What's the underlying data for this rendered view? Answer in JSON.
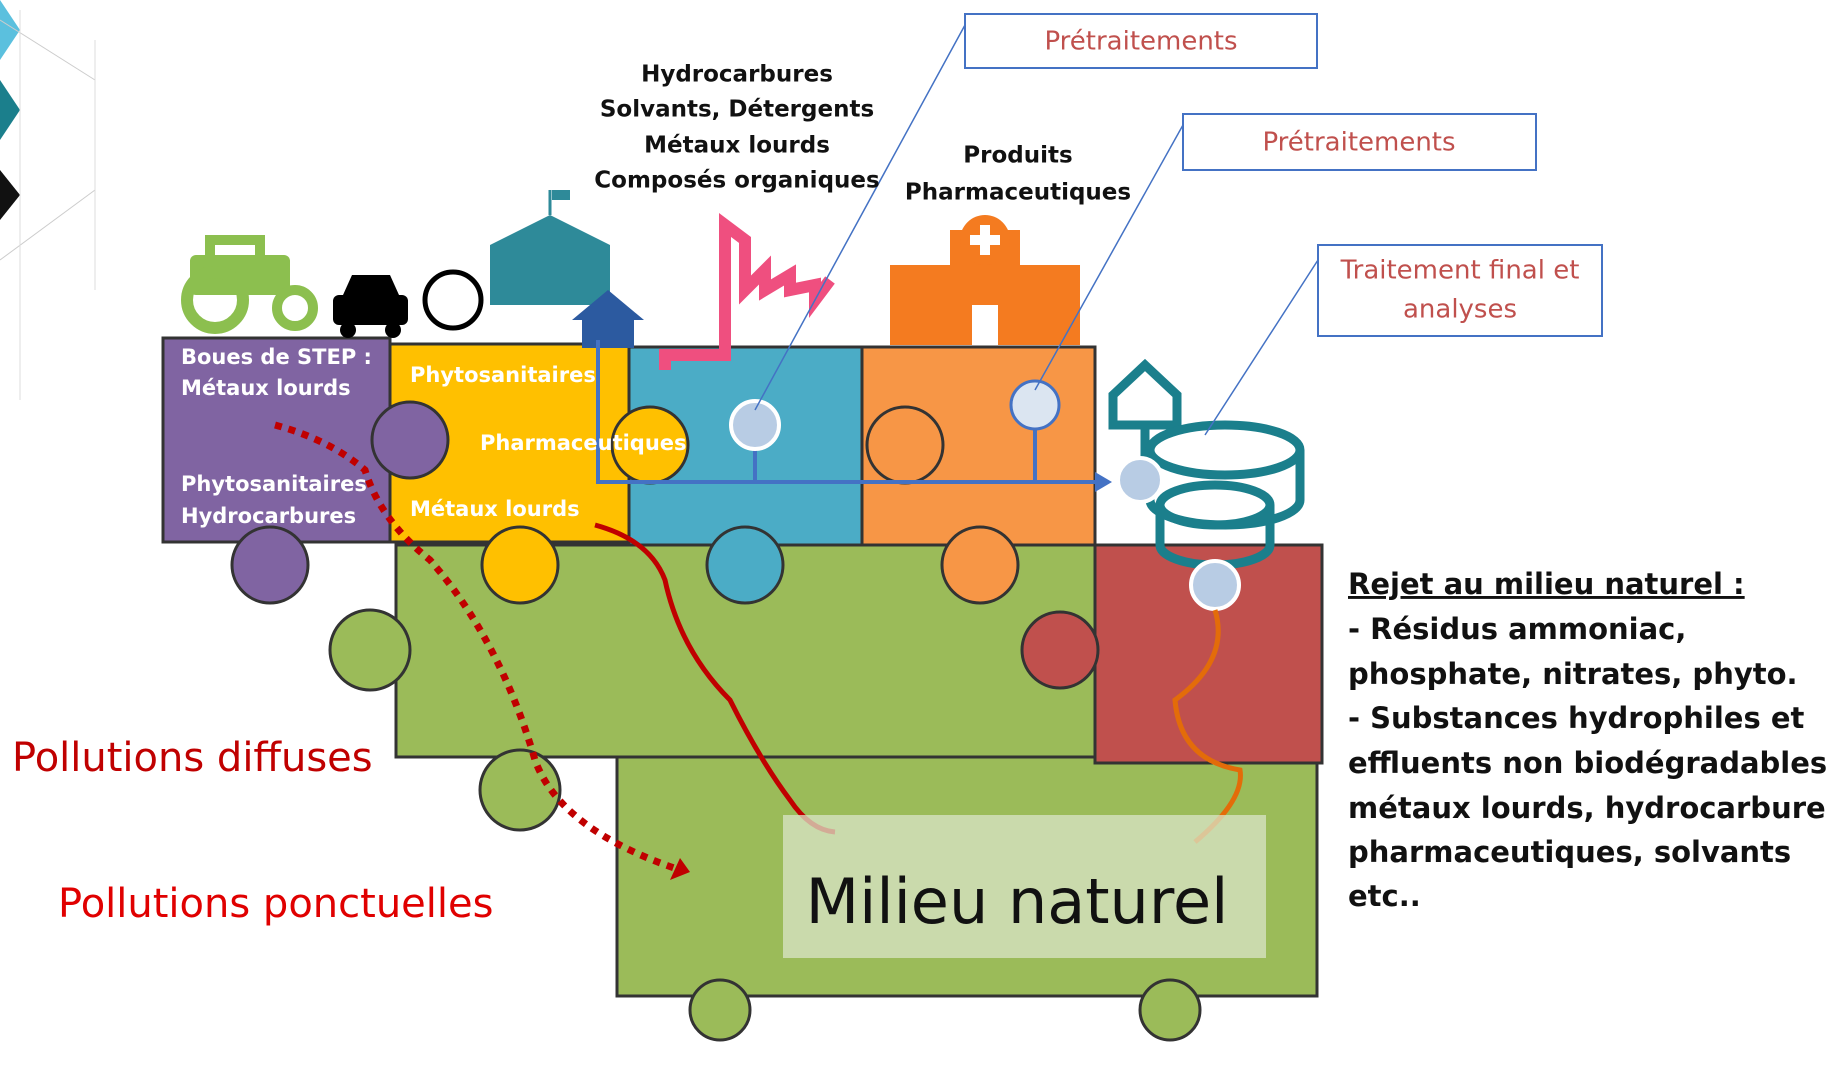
{
  "callouts": [
    {
      "lines": [
        "Prétraitements"
      ]
    },
    {
      "lines": [
        "Prétraitements"
      ]
    },
    {
      "lines": [
        "Traitement final et",
        "analyses"
      ]
    }
  ],
  "industry_pollutants": [
    "Hydrocarbures",
    "Solvants, Détergents",
    "Métaux lourds",
    "Composés organiques"
  ],
  "pharma_label": [
    "Produits",
    "Pharmaceutiques"
  ],
  "pieces": {
    "sludge": [
      "Boues de STEP :",
      "Métaux lourds",
      "Phytosanitaires",
      "Hydrocarbures"
    ],
    "urban": [
      "Phytosanitaires",
      "Pharmaceutiques",
      "Métaux lourds"
    ]
  },
  "pollution_labels": {
    "diffuse": "Pollutions diffuses",
    "point": "Pollutions ponctuelles"
  },
  "environment": "Milieu naturel",
  "discharge": {
    "title": "Rejet au milieu naturel :",
    "lines": [
      "- Résidus ammoniac,",
      "phosphate, nitrates, phyto.",
      "- Substances hydrophiles et",
      "effluents non biodégradables :",
      "métaux lourds, hydrocarbures,",
      "pharmaceutiques, solvants",
      "etc.."
    ]
  }
}
